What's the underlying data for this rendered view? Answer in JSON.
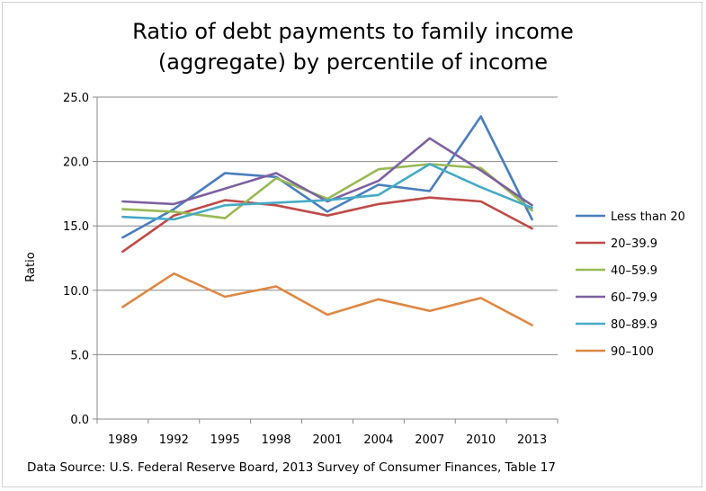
{
  "chart_data": {
    "type": "line",
    "title_line1": "Ratio of debt payments to family income",
    "title_line2": "(aggregate) by percentile of income",
    "ylabel": "Ratio",
    "xlabel": "",
    "ylim": [
      0,
      25
    ],
    "yticks": [
      "0.0",
      "5.0",
      "10.0",
      "15.0",
      "20.0",
      "25.0"
    ],
    "categories": [
      "1989",
      "1992",
      "1995",
      "1998",
      "2001",
      "2004",
      "2007",
      "2010",
      "2013"
    ],
    "grid": "horizontal",
    "legend_position": "right",
    "series": [
      {
        "name": "Less than 20",
        "color": "#4a7ebb",
        "values": [
          14.1,
          16.3,
          19.1,
          18.8,
          16.1,
          18.2,
          17.7,
          23.5,
          15.5
        ]
      },
      {
        "name": "20–39.9",
        "color": "#be4b48",
        "values": [
          13.0,
          15.8,
          17.0,
          16.6,
          15.8,
          16.7,
          17.2,
          16.9,
          14.8
        ]
      },
      {
        "name": "40–59.9",
        "color": "#98b954",
        "values": [
          16.3,
          16.1,
          15.6,
          18.7,
          17.1,
          19.4,
          19.8,
          19.5,
          16.2
        ]
      },
      {
        "name": "60–79.9",
        "color": "#7d60a0",
        "values": [
          16.9,
          16.7,
          17.9,
          19.1,
          16.9,
          18.5,
          21.8,
          19.3,
          16.6
        ]
      },
      {
        "name": "80–89.9",
        "color": "#46aac5",
        "values": [
          15.7,
          15.5,
          16.6,
          16.8,
          17.0,
          17.4,
          19.8,
          18.0,
          16.4
        ]
      },
      {
        "name": "90–100",
        "color": "#dd8844",
        "values": [
          8.7,
          11.3,
          9.5,
          10.3,
          8.1,
          9.3,
          8.4,
          9.4,
          7.3
        ]
      }
    ]
  },
  "source_text": "Data Source: U.S. Federal Reserve Board,  2013 Survey of Consumer Finances, Table 17"
}
